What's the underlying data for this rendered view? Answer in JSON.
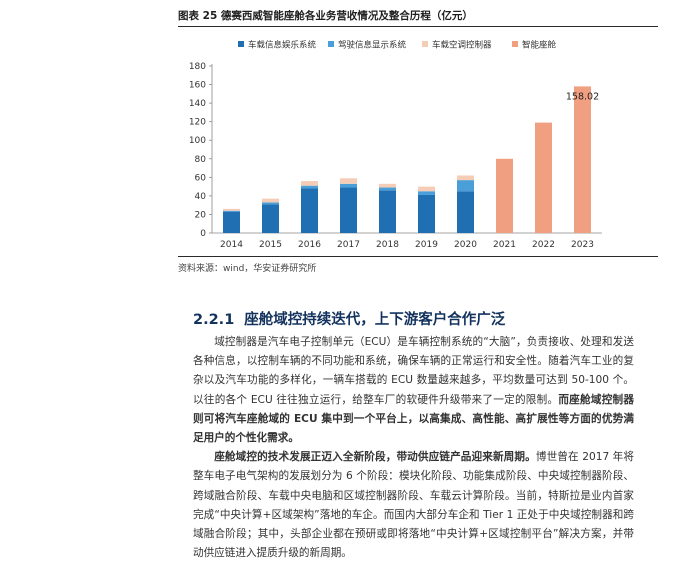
{
  "figure": {
    "title": "图表 25 德赛西威智能座舱各业务营收情况及整合历程（亿元）",
    "source": "资料来源：wind，华安证券研究所"
  },
  "chart_data": {
    "type": "bar",
    "stacked": true,
    "categories": [
      "2014",
      "2015",
      "2016",
      "2017",
      "2018",
      "2019",
      "2020",
      "2021",
      "2022",
      "2023"
    ],
    "ylim": [
      0,
      180
    ],
    "yticks": [
      0,
      20,
      40,
      60,
      80,
      100,
      120,
      140,
      160,
      180
    ],
    "grid": false,
    "legend_position": "top",
    "series": [
      {
        "name": "车载信息娱乐系统",
        "color": "#1f6fb2",
        "values": [
          23,
          31,
          48,
          49,
          46,
          41,
          45,
          null,
          null,
          null
        ]
      },
      {
        "name": "驾驶信息显示系统",
        "color": "#4a9fd8",
        "values": [
          1,
          2,
          3,
          4,
          3,
          4,
          12,
          null,
          null,
          null
        ]
      },
      {
        "name": "车载空调控制器",
        "color": "#f5cdb6",
        "values": [
          2,
          4,
          5,
          6,
          4,
          5,
          5,
          null,
          null,
          null
        ]
      },
      {
        "name": "智能座舱",
        "color": "#f0a080",
        "values": [
          null,
          null,
          null,
          null,
          null,
          null,
          null,
          80,
          119,
          158.02
        ]
      }
    ],
    "data_labels": [
      {
        "category": "2023",
        "text": "158.02"
      }
    ]
  },
  "section": {
    "number": "2.2.1",
    "title": "座舱域控持续迭代，上下游客户合作广泛"
  },
  "paragraphs": [
    {
      "text": "域控制器是汽车电子控制单元（ECU）是车辆控制系统的“大脑”，负责接收、处理和发送各种信息，以控制车辆的不同功能和系统，确保车辆的正常运行和安全性。随着汽车工业的复杂以及汽车功能的多样化，一辆车搭载的 ECU 数量越来越多，平均数量可达到 50-100 个。以往的各个 ECU 往往独立运行，给整车厂的软硬件升级带来了一定的限制。",
      "bold_tail": "而座舱域控制器则可将汽车座舱域的 ECU 集中到一个平台上，以高集成、高性能、高扩展性等方面的优势满足用户的个性化需求。"
    },
    {
      "bold_head": "座舱域控的技术发展正迈入全新阶段，带动供应链产品迎来新周期。",
      "text": "博世曾在 2017 年将整车电子电气架构的发展划分为 6 个阶段：模块化阶段、功能集成阶段、中央域控制器阶段、跨域融合阶段、车载中央电脑和区域控制器阶段、车载云计算阶段。当前，特斯拉是业内首家完成“中央计算+区域架构”落地的车企。而国内大部分车企和 Tier 1 正处于中央域控制器和跨域融合阶段；其中，头部企业都在预研或即将落地“中央计算+区域控制平台”解决方案，并带动供应链进入提质升级的新周期。"
    }
  ]
}
